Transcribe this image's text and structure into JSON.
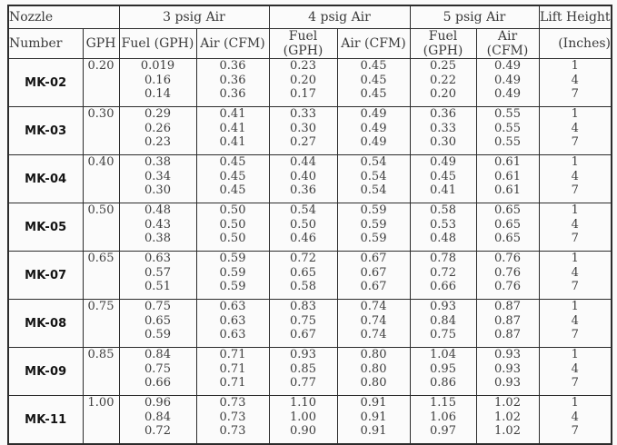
{
  "table": {
    "header": {
      "nozzle": "Nozzle",
      "number": "Number",
      "gph": "GPH",
      "psig3": "3 psig Air",
      "psig4": "4 psig Air",
      "psig5": "5 psig Air",
      "fuel": "Fuel (GPH)",
      "air": "Air (CFM)",
      "lift_line1": "Lift Height",
      "lift_line2": "(Inches)"
    },
    "rows": [
      {
        "nozzle": "MK-02",
        "gph": "0.20",
        "fuel3": [
          "0.019",
          "0.16",
          "0.14"
        ],
        "air3": [
          "0.36",
          "0.36",
          "0.36"
        ],
        "fuel4": [
          "0.23",
          "0.20",
          "0.17"
        ],
        "air4": [
          "0.45",
          "0.45",
          "0.45"
        ],
        "fuel5": [
          "0.25",
          "0.22",
          "0.20"
        ],
        "air5": [
          "0.49",
          "0.49",
          "0.49"
        ],
        "lift": [
          "1",
          "4",
          "7"
        ]
      },
      {
        "nozzle": "MK-03",
        "gph": "0.30",
        "fuel3": [
          "0.29",
          "0.26",
          "0.23"
        ],
        "air3": [
          "0.41",
          "0.41",
          "0.41"
        ],
        "fuel4": [
          "0.33",
          "0.30",
          "0.27"
        ],
        "air4": [
          "0.49",
          "0.49",
          "0.49"
        ],
        "fuel5": [
          "0.36",
          "0.33",
          "0.30"
        ],
        "air5": [
          "0.55",
          "0.55",
          "0.55"
        ],
        "lift": [
          "1",
          "4",
          "7"
        ]
      },
      {
        "nozzle": "MK-04",
        "gph": "0.40",
        "fuel3": [
          "0.38",
          "0.34",
          "0.30"
        ],
        "air3": [
          "0.45",
          "0.45",
          "0.45"
        ],
        "fuel4": [
          "0.44",
          "0.40",
          "0.36"
        ],
        "air4": [
          "0.54",
          "0.54",
          "0.54"
        ],
        "fuel5": [
          "0.49",
          "0.45",
          "0.41"
        ],
        "air5": [
          "0.61",
          "0.61",
          "0.61"
        ],
        "lift": [
          "1",
          "4",
          "7"
        ]
      },
      {
        "nozzle": "MK-05",
        "gph": "0.50",
        "fuel3": [
          "0.48",
          "0.43",
          "0.38"
        ],
        "air3": [
          "0.50",
          "0.50",
          "0.50"
        ],
        "fuel4": [
          "0.54",
          "0.50",
          "0.46"
        ],
        "air4": [
          "0.59",
          "0.59",
          "0.59"
        ],
        "fuel5": [
          "0.58",
          "0.53",
          "0.48"
        ],
        "air5": [
          "0.65",
          "0.65",
          "0.65"
        ],
        "lift": [
          "1",
          "4",
          "7"
        ]
      },
      {
        "nozzle": "MK-07",
        "gph": "0.65",
        "fuel3": [
          "0.63",
          "0.57",
          "0.51"
        ],
        "air3": [
          "0.59",
          "0.59",
          "0.59"
        ],
        "fuel4": [
          "0.72",
          "0.65",
          "0.58"
        ],
        "air4": [
          "0.67",
          "0.67",
          "0.67"
        ],
        "fuel5": [
          "0.78",
          "0.72",
          "0.66"
        ],
        "air5": [
          "0.76",
          "0.76",
          "0.76"
        ],
        "lift": [
          "1",
          "4",
          "7"
        ]
      },
      {
        "nozzle": "MK-08",
        "gph": "0.75",
        "fuel3": [
          "0.75",
          "0.65",
          "0.59"
        ],
        "air3": [
          "0.63",
          "0.63",
          "0.63"
        ],
        "fuel4": [
          "0.83",
          "0.75",
          "0.67"
        ],
        "air4": [
          "0.74",
          "0.74",
          "0.74"
        ],
        "fuel5": [
          "0.93",
          "0.84",
          "0.75"
        ],
        "air5": [
          "0.87",
          "0.87",
          "0.87"
        ],
        "lift": [
          "1",
          "4",
          "7"
        ]
      },
      {
        "nozzle": "MK-09",
        "gph": "0.85",
        "fuel3": [
          "0.84",
          "0.75",
          "0.66"
        ],
        "air3": [
          "0.71",
          "0.71",
          "0.71"
        ],
        "fuel4": [
          "0.93",
          "0.85",
          "0.77"
        ],
        "air4": [
          "0.80",
          "0.80",
          "0.80"
        ],
        "fuel5": [
          "1.04",
          "0.95",
          "0.86"
        ],
        "air5": [
          "0.93",
          "0.93",
          "0.93"
        ],
        "lift": [
          "1",
          "4",
          "7"
        ]
      },
      {
        "nozzle": "MK-11",
        "gph": "1.00",
        "fuel3": [
          "0.96",
          "0.84",
          "0.72"
        ],
        "air3": [
          "0.73",
          "0.73",
          "0.73"
        ],
        "fuel4": [
          "1.10",
          "1.00",
          "0.90"
        ],
        "air4": [
          "0.91",
          "0.91",
          "0.91"
        ],
        "fuel5": [
          "1.15",
          "1.06",
          "0.97"
        ],
        "air5": [
          "1.02",
          "1.02",
          "1.02"
        ],
        "lift": [
          "1",
          "4",
          "7"
        ]
      }
    ]
  }
}
